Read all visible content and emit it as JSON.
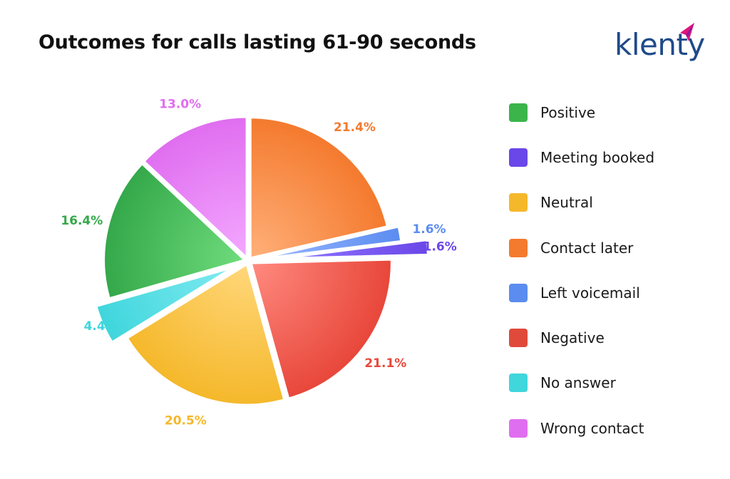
{
  "title": "Outcomes for calls lasting 61-90 seconds",
  "brand": {
    "name": "klenty",
    "color": "#1f4a8a",
    "accent": "#e0147a"
  },
  "chart_data": {
    "type": "pie",
    "title": "Outcomes for calls lasting 61-90 seconds",
    "legend_position": "right",
    "slices": [
      {
        "name": "Contact later",
        "value": 21.4,
        "label": "21.4%",
        "color": "#f47a2e",
        "light": "#ffb07a"
      },
      {
        "name": "Left voicemail",
        "value": 1.6,
        "label": "1.6%",
        "color": "#5b8cf0",
        "light": "#9ab8ff"
      },
      {
        "name": "Meeting booked",
        "value": 1.6,
        "label": "1.6%",
        "color": "#6a47e8",
        "light": "#8f75ff"
      },
      {
        "name": "Negative",
        "value": 21.1,
        "label": "21.1%",
        "color": "#e8473a",
        "light": "#ff8a80"
      },
      {
        "name": "Neutral",
        "value": 20.5,
        "label": "20.5%",
        "color": "#f5b82b",
        "light": "#ffd77a"
      },
      {
        "name": "No answer",
        "value": 4.4,
        "label": "4.4%",
        "color": "#3fd6dc",
        "light": "#7eeaf0"
      },
      {
        "name": "Positive",
        "value": 16.4,
        "label": "16.4%",
        "color": "#34a84a",
        "light": "#6fdc7c"
      },
      {
        "name": "Wrong contact",
        "value": 13.0,
        "label": "13.0%",
        "color": "#e06ef0",
        "light": "#f3a8ff"
      }
    ]
  },
  "legend": [
    {
      "label": "Positive",
      "color": "#3bb54a"
    },
    {
      "label": "Meeting booked",
      "color": "#6a47e8"
    },
    {
      "label": "Neutral",
      "color": "#f5b82b"
    },
    {
      "label": "Contact later",
      "color": "#f47a2e"
    },
    {
      "label": "Left voicemail",
      "color": "#5b8cf0"
    },
    {
      "label": "Negative",
      "color": "#e04a3a"
    },
    {
      "label": "No answer",
      "color": "#3fd6dc"
    },
    {
      "label": "Wrong contact",
      "color": "#e06ef0"
    }
  ]
}
